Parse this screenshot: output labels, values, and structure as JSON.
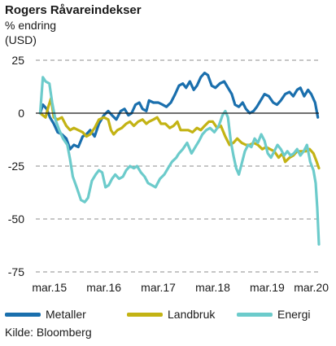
{
  "header": {
    "title": "Rogers Råvareindekser",
    "subtitle_line1": "% endring",
    "subtitle_line2": "(USD)"
  },
  "source": "Kilde: Bloomberg",
  "colors": {
    "metaller": "#1a6fad",
    "landbruk": "#c3b314",
    "energi": "#6ccbcb",
    "grid": "#8c8c8c",
    "zero": "#1a1a1a"
  },
  "chart_data": {
    "type": "line",
    "title": "Rogers Råvareindekser",
    "ylabel": "% endring (USD)",
    "xlabel": "",
    "ylim": [
      -75,
      25
    ],
    "yticks": [
      25,
      0,
      -25,
      -50,
      -75
    ],
    "grid": true,
    "legend_position": "bottom",
    "xlim": [
      2014.92,
      2020.12
    ],
    "xticks": [
      {
        "x": 2015.17,
        "label": "mar.15"
      },
      {
        "x": 2016.17,
        "label": "mar.16"
      },
      {
        "x": 2017.17,
        "label": "mar.17"
      },
      {
        "x": 2018.17,
        "label": "mar.18"
      },
      {
        "x": 2019.17,
        "label": "mar.19"
      },
      {
        "x": 2020.17,
        "label": "mar.20"
      }
    ],
    "series": [
      {
        "name": "Metaller",
        "color_key": "metaller",
        "points": [
          [
            2015.0,
            0
          ],
          [
            2015.05,
            4
          ],
          [
            2015.12,
            2
          ],
          [
            2015.18,
            -2
          ],
          [
            2015.25,
            -5
          ],
          [
            2015.32,
            -9
          ],
          [
            2015.4,
            -10
          ],
          [
            2015.48,
            -12
          ],
          [
            2015.55,
            -17
          ],
          [
            2015.62,
            -15
          ],
          [
            2015.7,
            -16
          ],
          [
            2015.78,
            -11
          ],
          [
            2015.85,
            -10
          ],
          [
            2015.92,
            -8
          ],
          [
            2016.0,
            -11
          ],
          [
            2016.08,
            -5
          ],
          [
            2016.17,
            -1
          ],
          [
            2016.25,
            1
          ],
          [
            2016.32,
            -1
          ],
          [
            2016.4,
            -3
          ],
          [
            2016.48,
            1
          ],
          [
            2016.55,
            2
          ],
          [
            2016.62,
            -1
          ],
          [
            2016.68,
            0
          ],
          [
            2016.75,
            4
          ],
          [
            2016.82,
            5
          ],
          [
            2016.88,
            2
          ],
          [
            2016.95,
            1
          ],
          [
            2017.0,
            6
          ],
          [
            2017.08,
            5
          ],
          [
            2017.17,
            5
          ],
          [
            2017.25,
            4
          ],
          [
            2017.32,
            3
          ],
          [
            2017.4,
            5
          ],
          [
            2017.48,
            9
          ],
          [
            2017.55,
            13
          ],
          [
            2017.62,
            14
          ],
          [
            2017.68,
            12
          ],
          [
            2017.75,
            15
          ],
          [
            2017.82,
            11
          ],
          [
            2017.88,
            13
          ],
          [
            2017.95,
            17
          ],
          [
            2018.02,
            19
          ],
          [
            2018.08,
            18
          ],
          [
            2018.15,
            13
          ],
          [
            2018.22,
            12
          ],
          [
            2018.3,
            14
          ],
          [
            2018.38,
            15
          ],
          [
            2018.45,
            12
          ],
          [
            2018.52,
            9
          ],
          [
            2018.58,
            4
          ],
          [
            2018.65,
            3
          ],
          [
            2018.72,
            5
          ],
          [
            2018.78,
            2
          ],
          [
            2018.85,
            0
          ],
          [
            2018.92,
            1
          ],
          [
            2018.98,
            3
          ],
          [
            2019.05,
            6
          ],
          [
            2019.12,
            9
          ],
          [
            2019.2,
            8
          ],
          [
            2019.28,
            5
          ],
          [
            2019.35,
            4
          ],
          [
            2019.42,
            6
          ],
          [
            2019.5,
            9
          ],
          [
            2019.58,
            10
          ],
          [
            2019.65,
            8
          ],
          [
            2019.72,
            11
          ],
          [
            2019.78,
            12
          ],
          [
            2019.85,
            8
          ],
          [
            2019.92,
            11
          ],
          [
            2019.98,
            9
          ],
          [
            2020.05,
            5
          ],
          [
            2020.1,
            -2
          ]
        ]
      },
      {
        "name": "Landbruk",
        "color_key": "landbruk",
        "points": [
          [
            2015.0,
            0
          ],
          [
            2015.05,
            -1
          ],
          [
            2015.1,
            -2
          ],
          [
            2015.15,
            3
          ],
          [
            2015.2,
            7
          ],
          [
            2015.25,
            -2
          ],
          [
            2015.32,
            -3
          ],
          [
            2015.4,
            -2
          ],
          [
            2015.48,
            -6
          ],
          [
            2015.55,
            -8
          ],
          [
            2015.62,
            -7
          ],
          [
            2015.7,
            -8
          ],
          [
            2015.78,
            -9
          ],
          [
            2015.85,
            -11
          ],
          [
            2015.92,
            -10
          ],
          [
            2016.0,
            -7
          ],
          [
            2016.08,
            -3
          ],
          [
            2016.17,
            -2
          ],
          [
            2016.25,
            -3
          ],
          [
            2016.3,
            -8
          ],
          [
            2016.35,
            -10
          ],
          [
            2016.42,
            -8
          ],
          [
            2016.5,
            -7
          ],
          [
            2016.58,
            -5
          ],
          [
            2016.65,
            -4
          ],
          [
            2016.72,
            -6
          ],
          [
            2016.8,
            -4
          ],
          [
            2016.88,
            -3
          ],
          [
            2016.95,
            -5
          ],
          [
            2017.0,
            -4
          ],
          [
            2017.08,
            -3
          ],
          [
            2017.15,
            -2
          ],
          [
            2017.22,
            -5
          ],
          [
            2017.3,
            -5
          ],
          [
            2017.38,
            -7
          ],
          [
            2017.45,
            -6
          ],
          [
            2017.52,
            -4
          ],
          [
            2017.58,
            -8
          ],
          [
            2017.65,
            -8
          ],
          [
            2017.72,
            -8
          ],
          [
            2017.8,
            -9
          ],
          [
            2017.88,
            -7
          ],
          [
            2017.95,
            -8
          ],
          [
            2018.02,
            -6
          ],
          [
            2018.1,
            -4
          ],
          [
            2018.17,
            -4
          ],
          [
            2018.25,
            -7
          ],
          [
            2018.32,
            -6
          ],
          [
            2018.4,
            -11
          ],
          [
            2018.48,
            -15
          ],
          [
            2018.55,
            -14
          ],
          [
            2018.62,
            -12
          ],
          [
            2018.7,
            -14
          ],
          [
            2018.78,
            -15
          ],
          [
            2018.85,
            -15
          ],
          [
            2018.92,
            -14
          ],
          [
            2019.0,
            -15
          ],
          [
            2019.08,
            -17
          ],
          [
            2019.15,
            -16
          ],
          [
            2019.22,
            -17
          ],
          [
            2019.3,
            -18
          ],
          [
            2019.38,
            -21
          ],
          [
            2019.45,
            -19
          ],
          [
            2019.5,
            -23
          ],
          [
            2019.58,
            -21
          ],
          [
            2019.65,
            -20
          ],
          [
            2019.72,
            -18
          ],
          [
            2019.8,
            -18
          ],
          [
            2019.88,
            -18
          ],
          [
            2019.95,
            -17
          ],
          [
            2020.02,
            -19
          ],
          [
            2020.08,
            -23
          ],
          [
            2020.12,
            -26
          ]
        ]
      },
      {
        "name": "Energi",
        "color_key": "energi",
        "points": [
          [
            2015.0,
            0
          ],
          [
            2015.05,
            17
          ],
          [
            2015.1,
            15
          ],
          [
            2015.17,
            14
          ],
          [
            2015.22,
            5
          ],
          [
            2015.28,
            -3
          ],
          [
            2015.35,
            -8
          ],
          [
            2015.42,
            -12
          ],
          [
            2015.5,
            -15
          ],
          [
            2015.55,
            -22
          ],
          [
            2015.6,
            -30
          ],
          [
            2015.67,
            -35
          ],
          [
            2015.75,
            -41
          ],
          [
            2015.82,
            -42
          ],
          [
            2015.88,
            -40
          ],
          [
            2015.95,
            -32
          ],
          [
            2016.02,
            -29
          ],
          [
            2016.08,
            -27
          ],
          [
            2016.14,
            -28
          ],
          [
            2016.2,
            -35
          ],
          [
            2016.26,
            -34
          ],
          [
            2016.32,
            -31
          ],
          [
            2016.38,
            -29
          ],
          [
            2016.45,
            -31
          ],
          [
            2016.52,
            -30
          ],
          [
            2016.58,
            -27
          ],
          [
            2016.65,
            -25
          ],
          [
            2016.72,
            -26
          ],
          [
            2016.78,
            -25
          ],
          [
            2016.85,
            -28
          ],
          [
            2016.92,
            -30
          ],
          [
            2016.98,
            -33
          ],
          [
            2017.05,
            -34
          ],
          [
            2017.12,
            -35
          ],
          [
            2017.2,
            -31
          ],
          [
            2017.28,
            -29
          ],
          [
            2017.35,
            -26
          ],
          [
            2017.42,
            -23
          ],
          [
            2017.5,
            -21
          ],
          [
            2017.55,
            -19
          ],
          [
            2017.62,
            -17
          ],
          [
            2017.7,
            -14
          ],
          [
            2017.78,
            -19
          ],
          [
            2017.85,
            -16
          ],
          [
            2017.92,
            -13
          ],
          [
            2017.98,
            -10
          ],
          [
            2018.05,
            -8
          ],
          [
            2018.12,
            -7
          ],
          [
            2018.2,
            -9
          ],
          [
            2018.28,
            -6
          ],
          [
            2018.35,
            -1
          ],
          [
            2018.4,
            1
          ],
          [
            2018.45,
            -2
          ],
          [
            2018.5,
            -13
          ],
          [
            2018.55,
            -20
          ],
          [
            2018.6,
            -26
          ],
          [
            2018.65,
            -29
          ],
          [
            2018.7,
            -24
          ],
          [
            2018.76,
            -18
          ],
          [
            2018.82,
            -15
          ],
          [
            2018.88,
            -16
          ],
          [
            2018.94,
            -12
          ],
          [
            2019.0,
            -14
          ],
          [
            2019.06,
            -10
          ],
          [
            2019.12,
            -13
          ],
          [
            2019.18,
            -19
          ],
          [
            2019.24,
            -21
          ],
          [
            2019.3,
            -18
          ],
          [
            2019.36,
            -15
          ],
          [
            2019.42,
            -17
          ],
          [
            2019.48,
            -20
          ],
          [
            2019.54,
            -18
          ],
          [
            2019.6,
            -20
          ],
          [
            2019.66,
            -19
          ],
          [
            2019.72,
            -17
          ],
          [
            2019.78,
            -20
          ],
          [
            2019.84,
            -18
          ],
          [
            2019.9,
            -15
          ],
          [
            2019.96,
            -23
          ],
          [
            2020.02,
            -27
          ],
          [
            2020.06,
            -33
          ],
          [
            2020.09,
            -45
          ],
          [
            2020.12,
            -62
          ]
        ]
      }
    ]
  },
  "legend": [
    {
      "label": "Metaller",
      "color_key": "metaller"
    },
    {
      "label": "Landbruk",
      "color_key": "landbruk"
    },
    {
      "label": "Energi",
      "color_key": "energi"
    }
  ]
}
